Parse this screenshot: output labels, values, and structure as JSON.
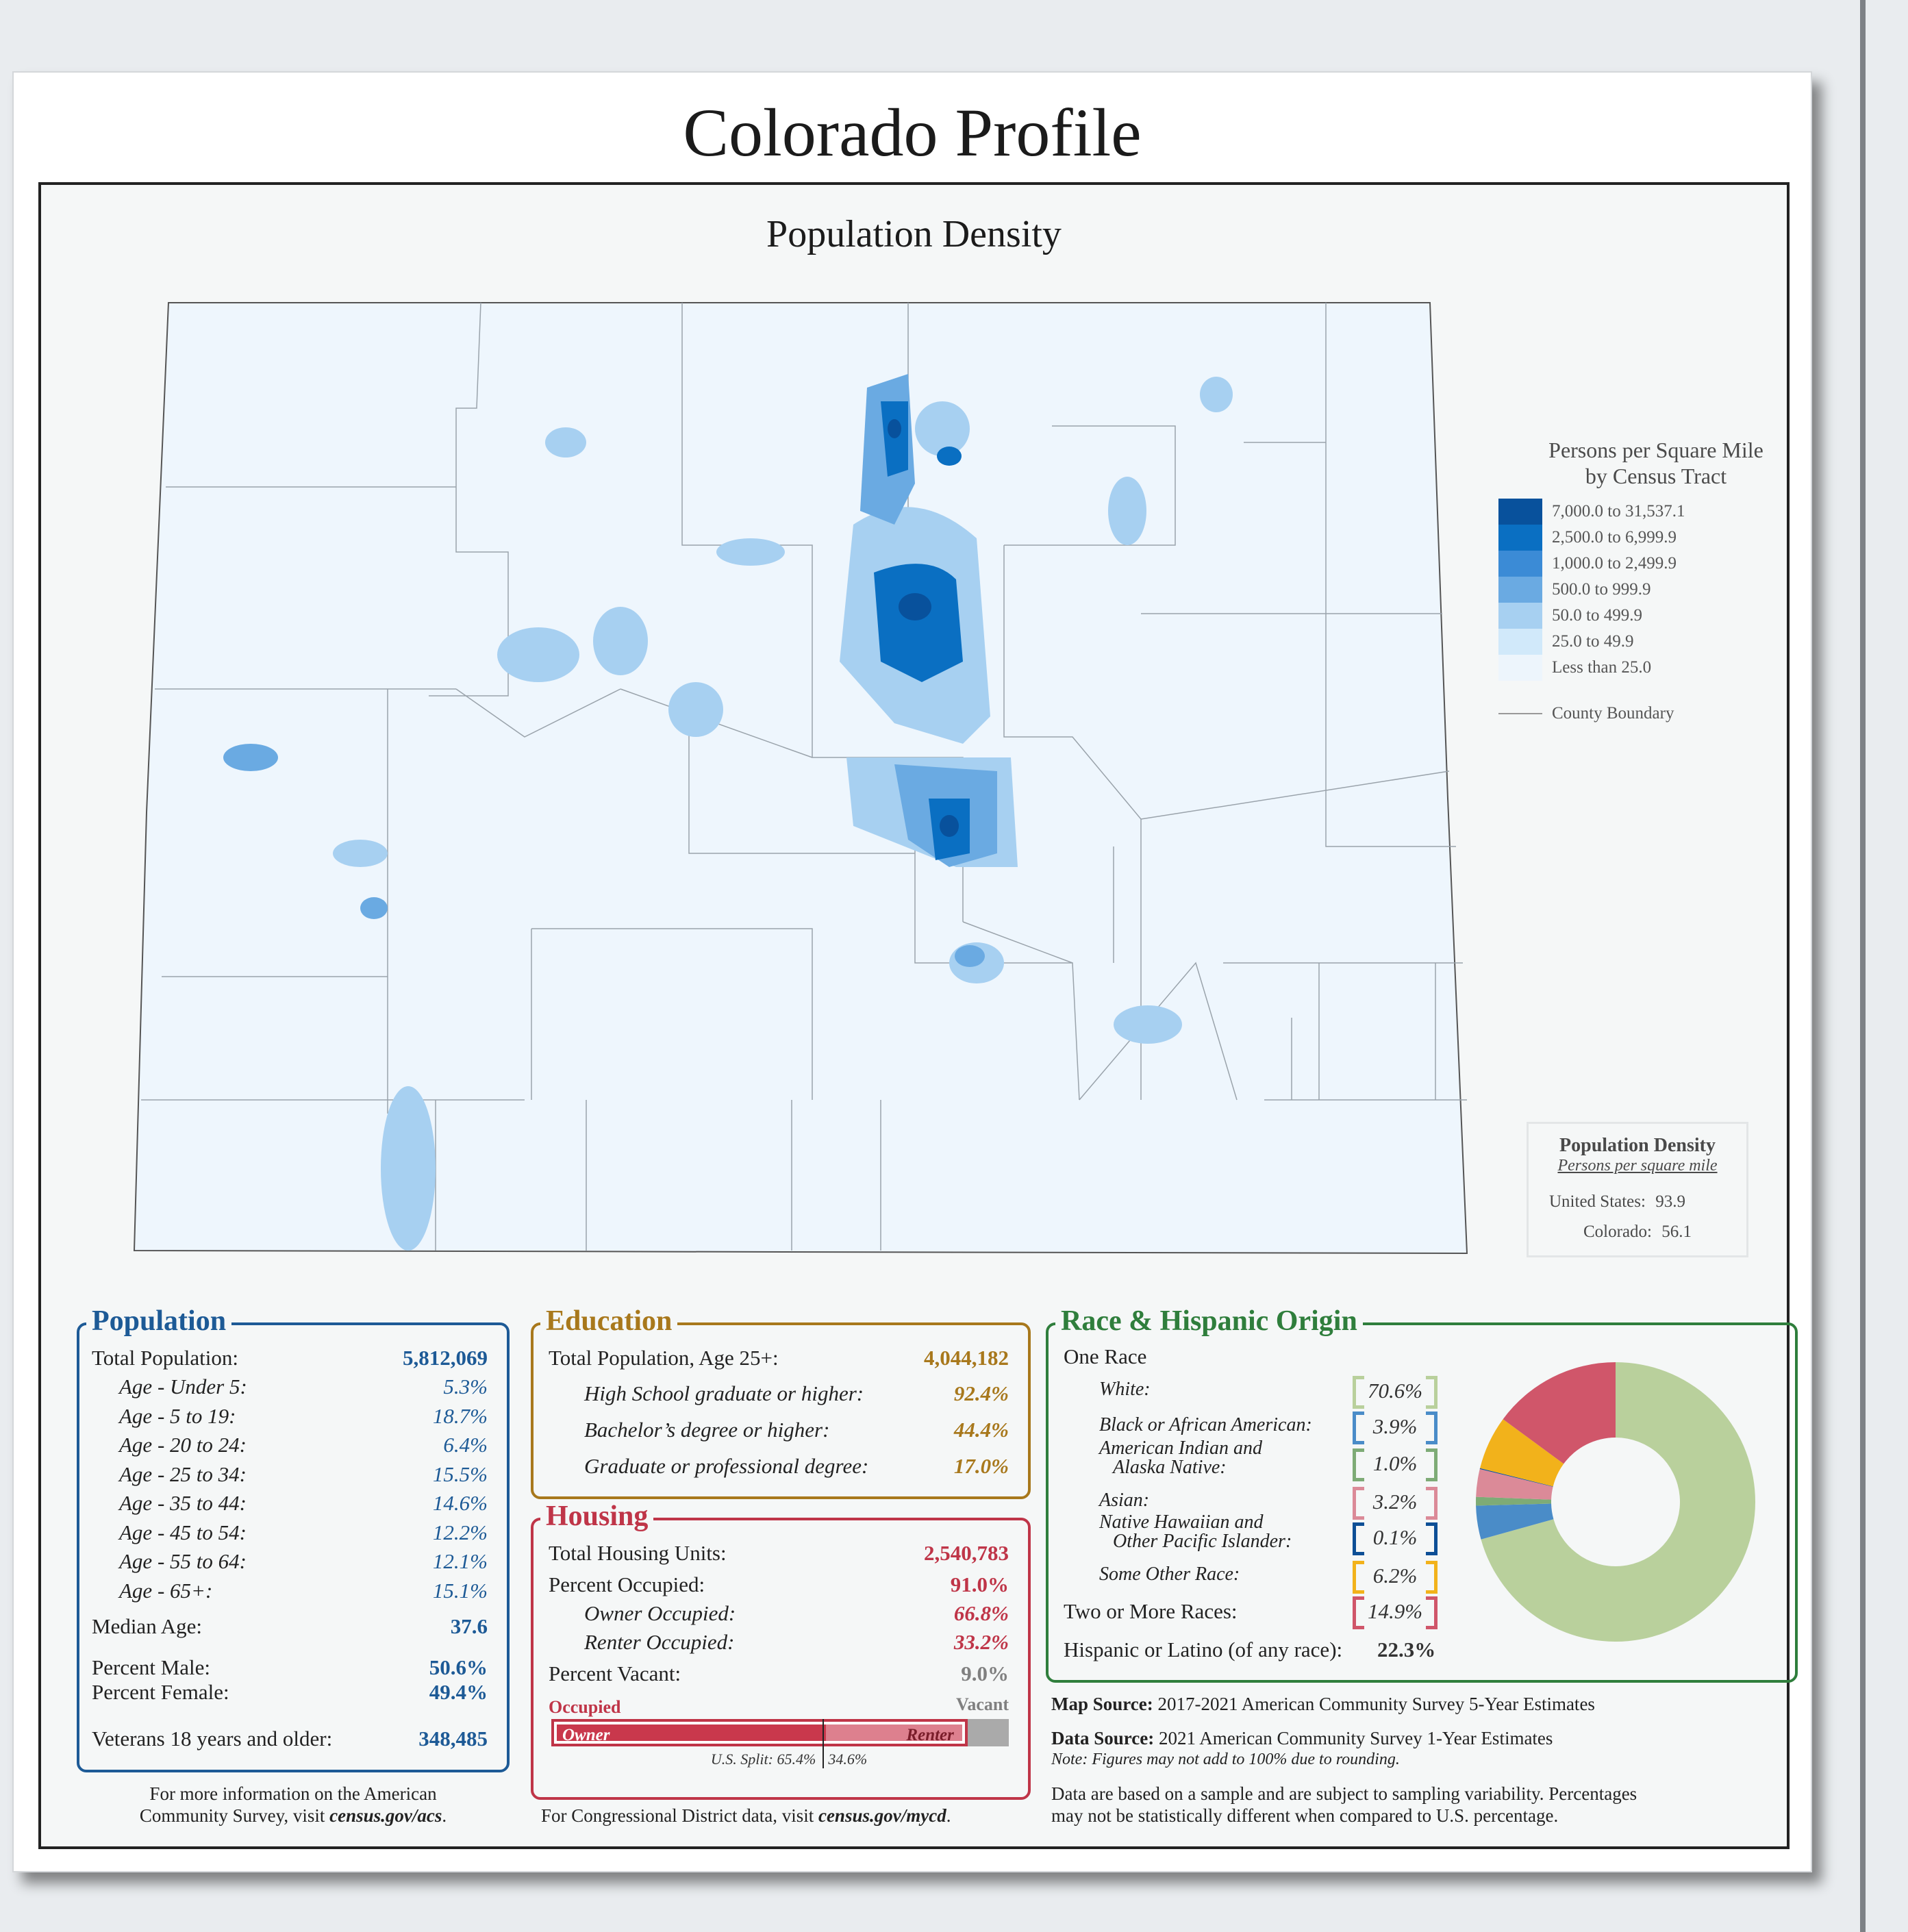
{
  "page_title": "Colorado Profile",
  "map": {
    "title": "Population Density",
    "legend": {
      "title_line1": "Persons per Square Mile",
      "title_line2": "by Census Tract",
      "classes": [
        {
          "label": "7,000.0 to 31,537.1",
          "color": "#08519c"
        },
        {
          "label": "2,500.0 to 6,999.9",
          "color": "#0a6fc2"
        },
        {
          "label": "1,000.0 to 2,499.9",
          "color": "#3b8bd6"
        },
        {
          "label": "500.0 to 999.9",
          "color": "#6aaae2"
        },
        {
          "label": "50.0 to 499.9",
          "color": "#a7d0f1"
        },
        {
          "label": "25.0 to 49.9",
          "color": "#d1e9fa"
        },
        {
          "label": "Less than 25.0",
          "color": "#edf5fc"
        }
      ],
      "boundary_label": "County Boundary"
    },
    "density_box": {
      "title": "Population Density",
      "subtitle": "Persons per square mile",
      "us_label": "United States:",
      "us_value": "93.9",
      "co_label": "Colorado:",
      "co_value": "56.1"
    }
  },
  "population": {
    "title": "Population",
    "total_label": "Total Population:",
    "total_value": "5,812,069",
    "ages": [
      {
        "label": "Age - Under 5:",
        "value": "5.3%"
      },
      {
        "label": "Age - 5 to 19:",
        "value": "18.7%"
      },
      {
        "label": "Age - 20 to 24:",
        "value": "6.4%"
      },
      {
        "label": "Age - 25 to 34:",
        "value": "15.5%"
      },
      {
        "label": "Age - 35 to 44:",
        "value": "14.6%"
      },
      {
        "label": "Age - 45 to 54:",
        "value": "12.2%"
      },
      {
        "label": "Age - 55 to 64:",
        "value": "12.1%"
      },
      {
        "label": "Age - 65+:",
        "value": "15.1%"
      }
    ],
    "median_label": "Median Age:",
    "median_value": "37.6",
    "male_label": "Percent Male:",
    "male_value": "50.6%",
    "female_label": "Percent Female:",
    "female_value": "49.4%",
    "veterans_label": "Veterans 18 years and older:",
    "veterans_value": "348,485"
  },
  "education": {
    "title": "Education",
    "total_label": "Total Population, Age 25+:",
    "total_value": "4,044,182",
    "hs_label": "High School  graduate or higher:",
    "hs_value": "92.4%",
    "ba_label": "Bachelor’s degree or higher:",
    "ba_value": "44.4%",
    "grad_label": "Graduate or professional degree:",
    "grad_value": "17.0%"
  },
  "housing": {
    "title": "Housing",
    "units_label": "Total Housing Units:",
    "units_value": "2,540,783",
    "occ_label": "Percent Occupied:",
    "occ_value": "91.0%",
    "owner_label": "Owner Occupied:",
    "owner_value": "66.8%",
    "renter_label": "Renter Occupied:",
    "renter_value": "33.2%",
    "vacant_label": "Percent Vacant:",
    "vacant_value": "9.0%",
    "bar": {
      "occupied_label": "Occupied",
      "vacant_label": "Vacant",
      "owner_label": "Owner",
      "renter_label": "Renter",
      "occupied_pct": 91.0,
      "owner_pct_of_occupied": 66.8,
      "us_split_label": "U.S. Split: 65.4%",
      "us_split_renter": "34.6%",
      "us_split_owner_pct": 65.4
    }
  },
  "race": {
    "title": "Race & Hispanic Origin",
    "one_race_label": "One Race",
    "items": [
      {
        "label": "White:",
        "value": "70.6%",
        "pct": 70.6,
        "color": "#b9d09c"
      },
      {
        "label": "Black or African American:",
        "value": "3.9%",
        "pct": 3.9,
        "color": "#4a8cc8"
      },
      {
        "label": "American Indian and",
        "label2": "Alaska Native:",
        "value": "1.0%",
        "pct": 1.0,
        "color": "#7eab76"
      },
      {
        "label": "Asian:",
        "value": "3.2%",
        "pct": 3.2,
        "color": "#db8a98"
      },
      {
        "label": "Native Hawaiian and",
        "label2": "Other Pacific Islander:",
        "value": "0.1%",
        "pct": 0.1,
        "color": "#0d4f96"
      },
      {
        "label": "Some Other Race:",
        "value": "6.2%",
        "pct": 6.2,
        "color": "#f2b21b"
      },
      {
        "label": "Two or More Races:",
        "value": "14.9%",
        "pct": 14.9,
        "color": "#d0566a"
      }
    ],
    "hispanic_label": "Hispanic or Latino (of any race):",
    "hispanic_value": "22.3%"
  },
  "sources": {
    "map_source_label": "Map Source:",
    "map_source_text": "2017-2021 American Community Survey 5-Year Estimates",
    "data_source_label": "Data Source:",
    "data_source_text": "2021 American Community Survey 1-Year Estimates",
    "note": "Note: Figures may not add to 100% due to rounding.",
    "sample_line1": "Data are based on a sample and are subject to sampling variability. Percentages",
    "sample_line2": "may not be statistically different when compared to U.S. percentage."
  },
  "footer": {
    "acs_line1": "For more information on the American",
    "acs_line2_prefix": "Community Survey, visit",
    "acs_link": "census.gov/acs",
    "acs_suffix": ".",
    "cd_prefix": "For Congressional District data, visit",
    "cd_link": "census.gov/mycd",
    "cd_suffix": "."
  }
}
